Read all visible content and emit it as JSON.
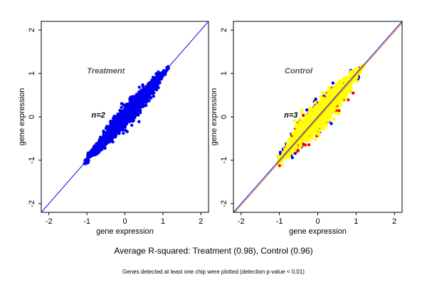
{
  "chart_data": [
    {
      "type": "scatter",
      "panel_label": "Treatment",
      "n_label": "n=2",
      "xlabel": "gene expression",
      "ylabel": "gene expression",
      "xlim": [
        -2.2,
        2.2
      ],
      "ylim": [
        -2.2,
        2.2
      ],
      "x_ticks": [
        -2,
        -1,
        0,
        1,
        2
      ],
      "y_ticks": [
        -2,
        -1,
        0,
        1,
        2
      ],
      "x_tick_labels": [
        "-2",
        "-1",
        "0",
        "1",
        "2"
      ],
      "y_tick_labels": [
        "-2",
        "-1",
        "0",
        "1",
        "2"
      ],
      "point_range": [
        -1.1,
        1.2
      ],
      "series": [
        {
          "color": "#0000ee",
          "spread": 0.12,
          "count": 1400
        }
      ],
      "reference_lines": [
        {
          "slope": 1,
          "intercept": 0,
          "color": "#0000ff"
        }
      ]
    },
    {
      "type": "scatter",
      "panel_label": "Control",
      "n_label": "n=3",
      "xlabel": "gene expression",
      "ylabel": "gene expression",
      "xlim": [
        -2.2,
        2.2
      ],
      "ylim": [
        -2.2,
        2.2
      ],
      "x_ticks": [
        -2,
        -1,
        0,
        1,
        2
      ],
      "y_ticks": [
        -2,
        -1,
        0,
        1,
        2
      ],
      "x_tick_labels": [
        "-2",
        "-1",
        "0",
        "1",
        "2"
      ],
      "y_tick_labels": [
        "-2",
        "-1",
        "0",
        "1",
        "2"
      ],
      "point_range": [
        -1.1,
        1.2
      ],
      "series": [
        {
          "color": "#0000ee",
          "spread": 0.22,
          "count": 180
        },
        {
          "color": "#ee0000",
          "spread": 0.2,
          "count": 220
        },
        {
          "color": "#ffff00",
          "spread": 0.16,
          "count": 1500
        }
      ],
      "reference_lines": [
        {
          "slope": 1,
          "intercept": 0,
          "color": "#0000ff"
        },
        {
          "slope": 1,
          "intercept": -0.04,
          "color": "#ff8800"
        }
      ]
    }
  ],
  "summary": "Average R-squared: Treatment (0.98), Control (0.96)",
  "footnote": "Genes detected at least one chip were plotted (detection p-value < 0.01)"
}
